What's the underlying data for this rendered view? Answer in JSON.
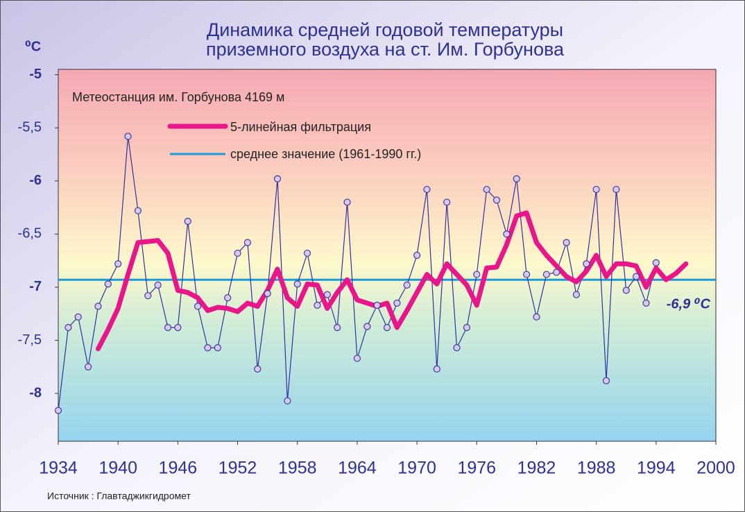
{
  "chart_data": {
    "type": "line",
    "title": [
      "Динамика средней годовой температуры",
      "приземного воздуха на ст. Им. Горбунова"
    ],
    "y_unit": "⁰C",
    "annotation": "Метеостанция им. Горбунова 4169 м",
    "source": "Источник : Главтаджикгидромет",
    "xlim": [
      1934,
      2000
    ],
    "xticks": [
      1934,
      1940,
      1946,
      1952,
      1958,
      1964,
      1970,
      1976,
      1982,
      1988,
      1994,
      2000
    ],
    "ylim": [
      -8.45,
      -4.95
    ],
    "yticks": [
      -8,
      {
        "value": -7.5,
        "label": "-7,5"
      },
      -7,
      {
        "value": -6.5,
        "label": "-6,5"
      },
      -6,
      {
        "value": -5.5,
        "label": "-5,5"
      },
      -5
    ],
    "x": [
      1934,
      1935,
      1936,
      1937,
      1938,
      1939,
      1940,
      1941,
      1942,
      1943,
      1944,
      1945,
      1946,
      1947,
      1948,
      1949,
      1950,
      1951,
      1952,
      1953,
      1954,
      1955,
      1956,
      1957,
      1958,
      1959,
      1960,
      1961,
      1962,
      1963,
      1964,
      1965,
      1966,
      1967,
      1968,
      1969,
      1970,
      1971,
      1972,
      1973,
      1974,
      1975,
      1976,
      1977,
      1978,
      1979,
      1980,
      1981,
      1982,
      1983,
      1984,
      1985,
      1986,
      1987,
      1988,
      1989,
      1990,
      1991,
      1992,
      1993,
      1994,
      1995,
      1996,
      1997
    ],
    "series": [
      {
        "color": "#3030a0",
        "values": [
          -8.16,
          -7.38,
          -7.28,
          -7.75,
          -7.18,
          -6.97,
          -6.78,
          -5.58,
          -6.28,
          -7.08,
          -6.98,
          -7.38,
          -7.38,
          -6.38,
          -7.18,
          -7.57,
          -7.57,
          -7.1,
          -6.68,
          -6.58,
          -7.77,
          -7.06,
          -5.98,
          -8.07,
          -6.97,
          -6.68,
          -7.17,
          -7.07,
          -7.38,
          -6.2,
          -7.67,
          -7.37,
          -7.17,
          -7.38,
          -7.15,
          -6.98,
          -6.7,
          -6.08,
          -7.77,
          -6.2,
          -7.57,
          -7.38,
          -6.88,
          -6.08,
          -6.18,
          -6.5,
          -5.98,
          -6.88,
          -7.28,
          -6.88,
          -6.86,
          -6.58,
          -7.07,
          -6.78,
          -6.08,
          -7.88,
          -6.08,
          -7.03,
          -6.9,
          -7.15,
          -6.77,
          null,
          null,
          null
        ]
      },
      {
        "name": "5-линейная фильтрация",
        "color": "#e8168a",
        "values": [
          null,
          null,
          null,
          null,
          -7.58,
          -7.4,
          -7.2,
          -6.88,
          -6.58,
          -6.57,
          -6.56,
          -6.68,
          -7.03,
          -7.05,
          -7.1,
          -7.22,
          -7.19,
          -7.2,
          -7.23,
          -7.15,
          -7.18,
          -7.03,
          -6.83,
          -7.1,
          -7.18,
          -6.97,
          -6.98,
          -7.2,
          -7.05,
          -6.93,
          -7.12,
          -7.15,
          -7.18,
          -7.15,
          -7.38,
          -7.22,
          -7.05,
          -6.88,
          -6.97,
          -6.78,
          -6.88,
          -6.98,
          -7.17,
          -6.82,
          -6.81,
          -6.6,
          -6.33,
          -6.3,
          -6.58,
          -6.7,
          -6.8,
          -6.9,
          -6.95,
          -6.85,
          -6.7,
          -6.9,
          -6.78,
          -6.78,
          -6.8,
          -7.0,
          -6.82,
          -6.93,
          -6.87,
          -6.78
        ]
      }
    ],
    "mean": {
      "name": "среднее значение (1961-1990 гг.)",
      "value": -6.93,
      "label": "-6,9 ⁰C",
      "color": "#1e9ad6"
    }
  }
}
